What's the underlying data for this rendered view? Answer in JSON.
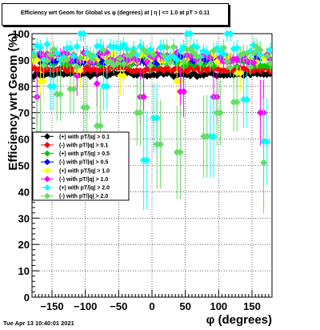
{
  "chart_data": {
    "type": "scatter",
    "title": "Efficiency wrt Geom for Global vs φ (degrees) at | η | <= 1.0 at pT > 0.11",
    "xlabel": "φ (degrees)",
    "ylabel": "Efficiency wrt Geom (%)",
    "xlim": [
      -180,
      180
    ],
    "ylim": [
      0,
      100
    ],
    "xticks": [
      -150,
      -100,
      -50,
      0,
      50,
      100,
      150
    ],
    "yticks": [
      0,
      10,
      20,
      30,
      40,
      50,
      60,
      70,
      80,
      90,
      100
    ],
    "grid": true,
    "legend_position": "middle-left",
    "series": [
      {
        "name": "(+) with pT/|q| > 0.1",
        "color": "#000000",
        "base": 84.5,
        "spread": 0.8,
        "dips": []
      },
      {
        "name": "(-) with pT/|q| > 0.1",
        "color": "#ff0000",
        "base": 86.5,
        "spread": 0.8,
        "dips": []
      },
      {
        "name": "(+) with pT/|q| > 0.5",
        "color": "#00cc00",
        "base": 89,
        "spread": 1.5,
        "dips": []
      },
      {
        "name": "(-) with pT/|q| > 0.5",
        "color": "#0000ff",
        "base": 90,
        "spread": 1.5,
        "dips": []
      },
      {
        "name": "(+) with pT/|q| > 1.0",
        "color": "#ffff00",
        "base": 91,
        "spread": 2,
        "dips": [
          [
            -165,
            82
          ],
          [
            -110,
            86
          ],
          [
            -45,
            84
          ],
          [
            40,
            82
          ],
          [
            130,
            85
          ]
        ]
      },
      {
        "name": "(-) with pT/|q| > 1.0",
        "color": "#ff00ff",
        "base": 91,
        "spread": 2,
        "dips": [
          [
            -172,
            76
          ],
          [
            -112,
            84
          ],
          [
            -82,
            81
          ],
          [
            -15,
            76
          ],
          [
            45,
            78
          ],
          [
            95,
            76
          ],
          [
            165,
            70
          ]
        ]
      },
      {
        "name": "(+) with pT/|q| > 2.0",
        "color": "#00ffff",
        "base": 93,
        "spread": 3,
        "dips": [
          [
            -150,
            80
          ],
          [
            -105,
            100
          ],
          [
            -70,
            80
          ],
          [
            -10,
            52
          ],
          [
            5,
            68
          ],
          [
            55,
            100
          ],
          [
            90,
            61
          ],
          [
            115,
            100
          ],
          [
            140,
            75
          ],
          [
            170,
            59
          ]
        ]
      },
      {
        "name": "(-) with pT/|q| > 2.0",
        "color": "#66dd66",
        "base": 91,
        "spread": 4,
        "dips": [
          [
            -170,
            62
          ],
          [
            -140,
            77
          ],
          [
            -120,
            79
          ],
          [
            -100,
            72
          ],
          [
            -80,
            65
          ],
          [
            -20,
            70
          ],
          [
            10,
            58
          ],
          [
            40,
            55
          ],
          [
            80,
            61
          ],
          [
            100,
            70
          ],
          [
            125,
            74
          ],
          [
            168,
            51
          ]
        ]
      }
    ]
  },
  "footer": {
    "timestamp": "Tue Apr 13 10:40:01 2021"
  }
}
